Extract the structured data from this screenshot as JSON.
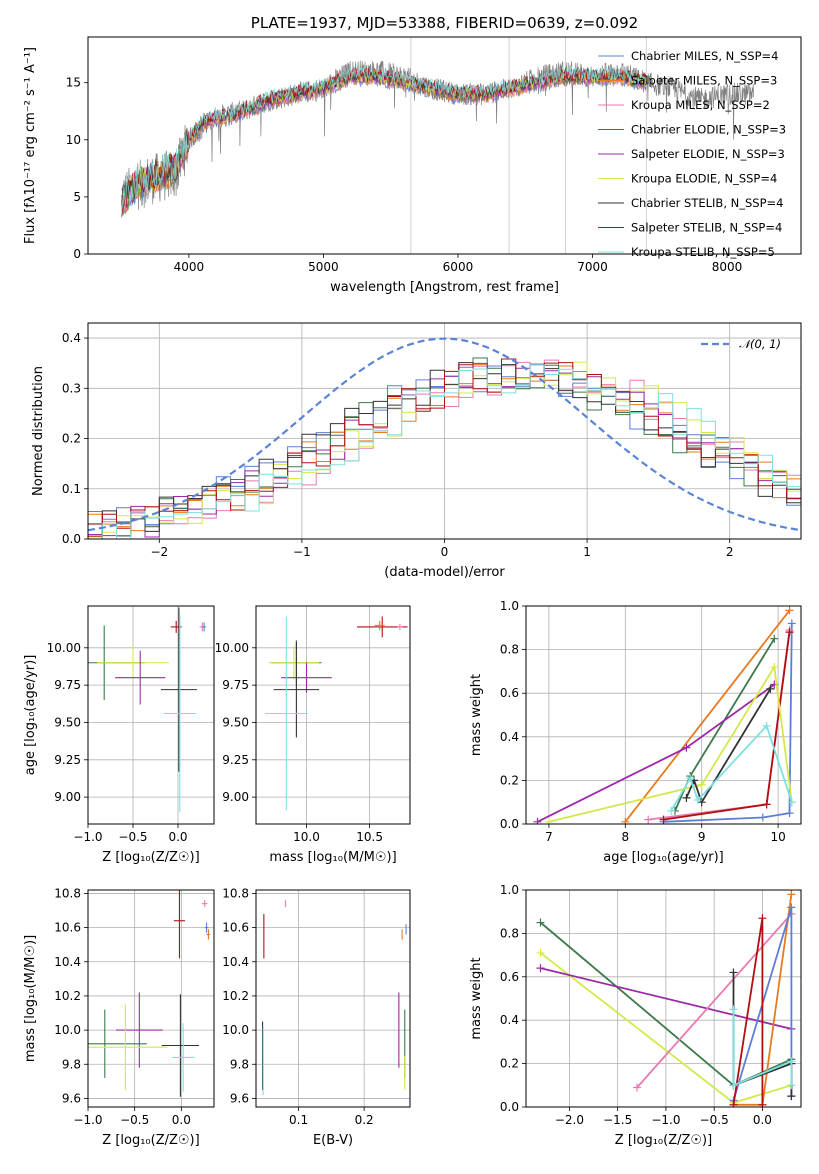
{
  "colors": {
    "chabrier_miles": "#5b7fd6",
    "salpeter_miles": "#e87a1e",
    "kroupa_miles": "#e87ab0",
    "chabrier_elodie": "#3d7a4a",
    "salpeter_elodie": "#9a2aa6",
    "kroupa_elodie": "#d4e84a",
    "chabrier_stelib": "#333333",
    "salpeter_stelib": "#b01010",
    "kroupa_stelib": "#7ee0e0",
    "data": "#808080",
    "normal": "#5b84d6"
  },
  "chart_data": [
    {
      "id": "spectrum",
      "type": "line",
      "title": "PLATE=1937, MJD=53388, FIBERID=0639, z=0.092",
      "xlabel": "wavelength [Angstrom, rest frame]",
      "ylabel": "Flux [fλ10⁻¹⁷ erg cm⁻² s⁻¹ A⁻¹]",
      "xlim": [
        3250,
        8550
      ],
      "ylim": [
        0,
        19
      ],
      "xticks": [
        4000,
        5000,
        6000,
        7000,
        8000
      ],
      "yticks": [
        0,
        5,
        10,
        15
      ],
      "grid": false,
      "legend_position": "top-right",
      "legend": [
        "Chabrier MILES, N_SSP=4",
        "Salpeter MILES, N_SSP=3",
        "Kroupa MILES, N_SSP=2",
        "Chabrier ELODIE, N_SSP=3",
        "Salpeter ELODIE, N_SSP=3",
        "Kroupa ELODIE, N_SSP=4",
        "Chabrier STELIB, N_SSP=4",
        "Salpeter STELIB, N_SSP=4",
        "Kroupa STELIB, N_SSP=5"
      ],
      "continuum": {
        "x": [
          3500,
          3600,
          3700,
          3800,
          3900,
          4000,
          4100,
          4200,
          4300,
          4400,
          4600,
          4800,
          5000,
          5200,
          5400,
          5600,
          5800,
          6000,
          6200,
          6400,
          6600,
          6800,
          7000,
          7200,
          7400
        ],
        "y": [
          4.5,
          6.0,
          6.5,
          7.0,
          7.5,
          10.0,
          11.5,
          12.0,
          12.0,
          12.5,
          13.5,
          14.0,
          14.5,
          15.5,
          15.5,
          15.0,
          14.5,
          14.0,
          14.0,
          14.5,
          15.0,
          15.5,
          15.5,
          15.5,
          15.0
        ]
      },
      "data_continuum": {
        "x": [
          3500,
          3700,
          3900,
          4000,
          4200,
          4400,
          4600,
          4800,
          5000,
          5200,
          5400,
          5600,
          5800,
          6000,
          6200,
          6400,
          6600,
          6800,
          7000,
          7200,
          7400,
          7600,
          7800,
          8000,
          8200
        ],
        "y": [
          5.0,
          6.5,
          7.0,
          10.0,
          12.0,
          12.5,
          13.5,
          14.0,
          14.5,
          16.0,
          16.0,
          15.5,
          14.5,
          14.0,
          14.0,
          14.5,
          15.5,
          16.0,
          15.5,
          16.0,
          15.0,
          14.5,
          13.5,
          14.0,
          14.0
        ]
      }
    },
    {
      "id": "residuals",
      "type": "line",
      "xlabel": "(data-model)/error",
      "ylabel": "Normed distribution",
      "xlim": [
        -2.5,
        2.5
      ],
      "ylim": [
        0,
        0.43
      ],
      "xticks": [
        -2,
        -1,
        0,
        1,
        2
      ],
      "yticks": [
        0.0,
        0.1,
        0.2,
        0.3,
        0.4
      ],
      "grid": true,
      "legend_position": "top-right",
      "legend": [
        "𝒩(0, 1)"
      ],
      "normal": {
        "mean": 0,
        "sigma": 1
      },
      "hist_model": {
        "peak_mean": 0.55,
        "sigma": 1.25,
        "scale": 0.33
      }
    },
    {
      "id": "age_vs_Z",
      "type": "scatter",
      "xlabel": "Z [log₁₀(Z/Z☉)]",
      "ylabel": "age  [log₁₀(age/yr)]",
      "xlim": [
        -1.0,
        0.4
      ],
      "ylim": [
        8.82,
        10.28
      ],
      "xticks": [
        -1.0,
        -0.5,
        0.0
      ],
      "yticks": [
        9.0,
        9.25,
        9.5,
        9.75,
        10.0
      ],
      "grid": true,
      "points": [
        {
          "c": "salpeter_stelib",
          "x": -0.02,
          "y": 10.14,
          "xe": 0.06,
          "ye": 0.04
        },
        {
          "c": "kroupa_miles",
          "x": 0.27,
          "y": 10.14,
          "xe": 0.03,
          "ye": 0.03
        },
        {
          "c": "chabrier_miles",
          "x": 0.29,
          "y": 10.14,
          "xe": 0.02,
          "ye": 0.03
        },
        {
          "c": "chabrier_elodie",
          "x": -0.82,
          "y": 9.9,
          "xe": 0.45,
          "ye": 0.25
        },
        {
          "c": "kroupa_elodie",
          "x": -0.5,
          "y": 9.9,
          "xe": 0.4,
          "ye": 0.11
        },
        {
          "c": "salpeter_elodie",
          "x": -0.42,
          "y": 9.8,
          "xe": 0.28,
          "ye": 0.18
        },
        {
          "c": "chabrier_stelib",
          "x": 0.01,
          "y": 9.72,
          "xe": 0.2,
          "ye": 0.55
        },
        {
          "c": "kroupa_stelib",
          "x": 0.02,
          "y": 9.56,
          "xe": 0.18,
          "ye": 0.66
        }
      ]
    },
    {
      "id": "age_vs_mass",
      "type": "scatter",
      "xlabel": "mass [log₁₀(M/M☉)]",
      "ylabel": "",
      "xlim": [
        9.6,
        10.82
      ],
      "ylim": [
        8.82,
        10.28
      ],
      "xticks": [
        10.0,
        10.5
      ],
      "yticks": [
        9.0,
        9.25,
        9.5,
        9.75,
        10.0
      ],
      "grid": true,
      "points": [
        {
          "c": "salpeter_stelib",
          "x": 10.6,
          "y": 10.14,
          "xe": 0.2,
          "ye": 0.07
        },
        {
          "c": "kroupa_miles",
          "x": 10.74,
          "y": 10.14,
          "xe": 0.02,
          "ye": 0.02
        },
        {
          "c": "salpeter_miles",
          "x": 10.58,
          "y": 10.15,
          "xe": 0.04,
          "ye": 0.03
        },
        {
          "c": "chabrier_elodie",
          "x": 9.92,
          "y": 9.9,
          "xe": 0.2,
          "ye": 0.15
        },
        {
          "c": "kroupa_elodie",
          "x": 9.9,
          "y": 9.9,
          "xe": 0.2,
          "ye": 0.11
        },
        {
          "c": "salpeter_elodie",
          "x": 10.0,
          "y": 9.8,
          "xe": 0.2,
          "ye": 0.1
        },
        {
          "c": "chabrier_stelib",
          "x": 9.92,
          "y": 9.72,
          "xe": 0.18,
          "ye": 0.32
        },
        {
          "c": "kroupa_stelib",
          "x": 9.84,
          "y": 9.56,
          "xe": 0.17,
          "ye": 0.65
        }
      ]
    },
    {
      "id": "weight_vs_age",
      "type": "line",
      "xlabel": "age  [log₁₀(age/yr)]",
      "ylabel": "mass weight",
      "xlim": [
        6.7,
        10.3
      ],
      "ylim": [
        0,
        1.0
      ],
      "xticks": [
        7,
        8,
        9,
        10
      ],
      "yticks": [
        0.0,
        0.2,
        0.4,
        0.6,
        0.8,
        1.0
      ],
      "grid": true,
      "series": [
        {
          "c": "salpeter_miles",
          "x": [
            8.0,
            10.15
          ],
          "y": [
            0.01,
            0.98
          ]
        },
        {
          "c": "chabrier_miles",
          "x": [
            8.5,
            9.8,
            10.15,
            10.18
          ],
          "y": [
            0.01,
            0.03,
            0.05,
            0.92
          ]
        },
        {
          "c": "kroupa_miles",
          "x": [
            8.3,
            9.85,
            10.15
          ],
          "y": [
            0.02,
            0.09,
            0.89
          ]
        },
        {
          "c": "salpeter_stelib",
          "x": [
            8.5,
            9.85,
            10.15
          ],
          "y": [
            0.02,
            0.09,
            0.88
          ]
        },
        {
          "c": "chabrier_elodie",
          "x": [
            8.65,
            8.85,
            9.95
          ],
          "y": [
            0.06,
            0.22,
            0.85
          ]
        },
        {
          "c": "salpeter_elodie",
          "x": [
            6.85,
            8.8,
            9.95
          ],
          "y": [
            0.01,
            0.35,
            0.64
          ]
        },
        {
          "c": "kroupa_elodie",
          "x": [
            7.0,
            9.0,
            9.95,
            10.18
          ],
          "y": [
            0.01,
            0.18,
            0.72,
            0.1
          ]
        },
        {
          "c": "chabrier_stelib",
          "x": [
            8.8,
            8.9,
            9.0,
            9.9
          ],
          "y": [
            0.12,
            0.2,
            0.1,
            0.62
          ]
        },
        {
          "c": "kroupa_stelib",
          "x": [
            8.6,
            8.85,
            8.95,
            9.85,
            10.18
          ],
          "y": [
            0.06,
            0.21,
            0.11,
            0.45,
            0.1
          ]
        }
      ]
    },
    {
      "id": "mass_vs_Z",
      "type": "scatter",
      "xlabel": "Z [log₁₀(Z/Z☉)]",
      "ylabel": "mass [log₁₀(M/M☉)]",
      "xlim": [
        -1.0,
        0.35
      ],
      "ylim": [
        9.55,
        10.82
      ],
      "xticks": [
        -1.0,
        -0.5,
        0.0
      ],
      "yticks": [
        9.6,
        9.8,
        10.0,
        10.2,
        10.4,
        10.6,
        10.8
      ],
      "grid": true,
      "points": [
        {
          "c": "kroupa_miles",
          "x": 0.25,
          "y": 10.74,
          "xe": 0.03,
          "ye": 0.02
        },
        {
          "c": "salpeter_stelib",
          "x": -0.02,
          "y": 10.64,
          "xe": 0.06,
          "ye": 0.22
        },
        {
          "c": "chabrier_miles",
          "x": 0.27,
          "y": 10.6,
          "xe": 0.02,
          "ye": 0.03
        },
        {
          "c": "salpeter_miles",
          "x": 0.29,
          "y": 10.56,
          "xe": 0.02,
          "ye": 0.03
        },
        {
          "c": "salpeter_elodie",
          "x": -0.45,
          "y": 10.0,
          "xe": 0.25,
          "ye": 0.22
        },
        {
          "c": "chabrier_elodie",
          "x": -0.82,
          "y": 9.92,
          "xe": 0.45,
          "ye": 0.2
        },
        {
          "c": "kroupa_elodie",
          "x": -0.6,
          "y": 9.9,
          "xe": 0.45,
          "ye": 0.25
        },
        {
          "c": "chabrier_stelib",
          "x": -0.01,
          "y": 9.91,
          "xe": 0.2,
          "ye": 0.3
        },
        {
          "c": "kroupa_stelib",
          "x": 0.02,
          "y": 9.84,
          "xe": 0.12,
          "ye": 0.2
        }
      ]
    },
    {
      "id": "mass_vs_ebv",
      "type": "scatter",
      "xlabel": "E(B-V)",
      "ylabel": "",
      "xlim": [
        0.035,
        0.27
      ],
      "ylim": [
        9.55,
        10.82
      ],
      "xticks": [
        0.1,
        0.2
      ],
      "yticks": [
        9.6,
        9.8,
        10.0,
        10.2,
        10.4,
        10.6,
        10.8
      ],
      "grid": true,
      "points": [
        {
          "c": "kroupa_miles",
          "x": 0.08,
          "y": 10.74,
          "xe": 0.0,
          "ye": 0.02
        },
        {
          "c": "salpeter_stelib",
          "x": 0.047,
          "y": 10.55,
          "xe": 0.0,
          "ye": 0.13
        },
        {
          "c": "salpeter_miles",
          "x": 0.258,
          "y": 10.56,
          "xe": 0.0,
          "ye": 0.03
        },
        {
          "c": "chabrier_miles",
          "x": 0.264,
          "y": 10.59,
          "xe": 0.0,
          "ye": 0.03
        },
        {
          "c": "salpeter_elodie",
          "x": 0.253,
          "y": 10.0,
          "xe": 0.0,
          "ye": 0.22
        },
        {
          "c": "chabrier_elodie",
          "x": 0.262,
          "y": 9.92,
          "xe": 0.0,
          "ye": 0.2
        },
        {
          "c": "kroupa_elodie",
          "x": 0.262,
          "y": 9.75,
          "xe": 0.0,
          "ye": 0.1
        },
        {
          "c": "chabrier_stelib",
          "x": 0.045,
          "y": 9.85,
          "xe": 0.0,
          "ye": 0.2
        },
        {
          "c": "kroupa_stelib",
          "x": 0.046,
          "y": 9.82,
          "xe": 0.0,
          "ye": 0.2
        }
      ]
    },
    {
      "id": "weight_vs_Z",
      "type": "line",
      "xlabel": "Z [log₁₀(Z/Z☉)]",
      "ylabel": "mass weight",
      "xlim": [
        -2.45,
        0.4
      ],
      "ylim": [
        0,
        1.0
      ],
      "xticks": [
        -2.0,
        -1.5,
        -1.0,
        -0.5,
        0.0
      ],
      "yticks": [
        0.0,
        0.2,
        0.4,
        0.6,
        0.8,
        1.0
      ],
      "grid": true,
      "series": [
        {
          "c": "chabrier_elodie",
          "x": [
            -2.3,
            -0.3,
            0.3
          ],
          "y": [
            0.85,
            0.1,
            0.22
          ]
        },
        {
          "c": "kroupa_elodie",
          "x": [
            -2.3,
            -0.3,
            0.3
          ],
          "y": [
            0.71,
            0.02,
            0.1
          ]
        },
        {
          "c": "salpeter_elodie",
          "x": [
            -2.3,
            0.3
          ],
          "y": [
            0.64,
            0.36
          ]
        },
        {
          "c": "kroupa_miles",
          "x": [
            -1.3,
            0.3
          ],
          "y": [
            0.09,
            0.89
          ]
        },
        {
          "c": "salpeter_miles",
          "x": [
            -0.3,
            0.0,
            0.3
          ],
          "y": [
            0.01,
            0.01,
            0.98
          ]
        },
        {
          "c": "chabrier_miles",
          "x": [
            -0.3,
            0.3,
            0.3
          ],
          "y": [
            0.03,
            0.92,
            0.05
          ]
        },
        {
          "c": "salpeter_stelib",
          "x": [
            -0.3,
            0.0,
            0.0
          ],
          "y": [
            0.01,
            0.87,
            0.01
          ]
        },
        {
          "c": "chabrier_stelib",
          "x": [
            -0.3,
            -0.3,
            0.3,
            0.3
          ],
          "y": [
            0.62,
            0.1,
            0.2,
            0.05
          ]
        },
        {
          "c": "kroupa_stelib",
          "x": [
            -0.3,
            -0.3,
            0.3,
            0.3
          ],
          "y": [
            0.45,
            0.1,
            0.21,
            0.1
          ]
        }
      ]
    }
  ]
}
